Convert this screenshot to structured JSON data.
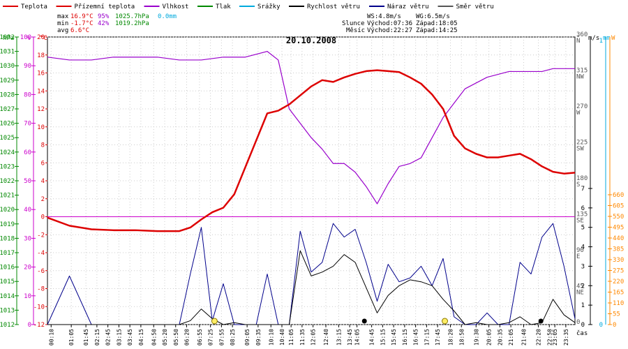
{
  "chart_data": {
    "type": "line",
    "title": "20.10.2008",
    "x_axis_label": "čas",
    "x_tick_labels": [
      "00:10",
      "01:05",
      "01:45",
      "02:15",
      "02:45",
      "03:15",
      "03:45",
      "04:15",
      "04:50",
      "05:20",
      "05:50",
      "06:20",
      "06:55",
      "07:25",
      "07:55",
      "08:25",
      "09:05",
      "09:35",
      "10:10",
      "10:40",
      "11:05",
      "11:35",
      "12:05",
      "12:40",
      "13:15",
      "13:45",
      "14:05",
      "14:45",
      "15:15",
      "15:45",
      "16:15",
      "16:45",
      "17:15",
      "17:45",
      "18:20",
      "18:50",
      "19:30",
      "20:05",
      "20:35",
      "21:05",
      "21:40",
      "22:20",
      "22:50",
      "23:05",
      "23:35"
    ],
    "legend": [
      {
        "name": "Teplota",
        "color": "#dd0000"
      },
      {
        "name": "Přízemní teplota",
        "color": "#dd0000"
      },
      {
        "name": "Vlhkost",
        "color": "#9900cc"
      },
      {
        "name": "Tlak",
        "color": "#008800"
      },
      {
        "name": "Srážky",
        "color": "#00aadd"
      },
      {
        "name": "Rychlost větru",
        "color": "#000000"
      },
      {
        "name": "Náraz větru",
        "color": "#00008b"
      },
      {
        "name": "Směr větru",
        "color": "#555555"
      }
    ],
    "stats": [
      {
        "label": "max",
        "temp": "16.9°C",
        "hum": "95%",
        "press": "1025.7hPa",
        "rain": "0.0mm"
      },
      {
        "label": "min",
        "temp": "-1.7°C",
        "hum": "42%",
        "press": "1019.2hPa",
        "rain": ""
      },
      {
        "label": "avg",
        "temp": "6.6°C",
        "hum": "",
        "press": "",
        "rain": ""
      }
    ],
    "wind_info": {
      "ws": "WS:4.8m/s",
      "wg": "WG:6.5m/s",
      "sun_label": "Slunce",
      "moon_label": "Měsíc",
      "sunrise": "Východ:07:36",
      "sunset": "Západ:18:05",
      "moonrise": "Východ:22:27",
      "moonset": "Západ:14:25"
    },
    "axes": {
      "pressure": {
        "unit": "hPa",
        "min": 1012,
        "max": 1032,
        "ticks": [
          1012,
          1013,
          1014,
          1015,
          1016,
          1017,
          1018,
          1019,
          1020,
          1021,
          1022,
          1023,
          1024,
          1025,
          1026,
          1027,
          1028,
          1029,
          1030,
          1031,
          1032
        ]
      },
      "humidity": {
        "unit": "%",
        "min": 0,
        "max": 100,
        "ticks": [
          0,
          10,
          20,
          30,
          40,
          50,
          60,
          70,
          80,
          90,
          100
        ]
      },
      "temperature": {
        "unit": "°C",
        "min": -12,
        "max": 20,
        "ticks": [
          -12,
          -10,
          -8,
          -6,
          -4,
          -2,
          0,
          2,
          4,
          6,
          8,
          10,
          12,
          14,
          16,
          18,
          20
        ]
      },
      "direction": {
        "unit": "°",
        "ticks": [
          {
            "v": 0,
            "label": "0"
          },
          {
            "v": 45,
            "label": "45",
            "dir": "NE"
          },
          {
            "v": 90,
            "label": "90",
            "dir": "E"
          },
          {
            "v": 135,
            "label": "135",
            "dir": "SE"
          },
          {
            "v": 180,
            "label": "180",
            "dir": "S"
          },
          {
            "v": 225,
            "label": "225",
            "dir": "SW"
          },
          {
            "v": 270,
            "label": "270",
            "dir": "W"
          },
          {
            "v": 315,
            "label": "315",
            "dir": "NW"
          },
          {
            "v": 360,
            "label": "360",
            "dir": "N"
          }
        ]
      },
      "wind_speed": {
        "unit": "m/s",
        "min": 0,
        "max": 7,
        "ticks": [
          0,
          1,
          2,
          3,
          4,
          5,
          6,
          7
        ]
      },
      "rain": {
        "unit": "mm",
        "min": 0,
        "max": 1,
        "ticks": [
          0,
          1
        ]
      },
      "solar": {
        "unit": "W",
        "min": 0,
        "max": 660,
        "ticks": [
          0,
          55,
          110,
          165,
          220,
          275,
          330,
          385,
          440,
          495,
          550,
          605,
          660
        ]
      }
    },
    "series": [
      {
        "name": "Teplota",
        "unit": "°C",
        "x": [
          0,
          1,
          2,
          3,
          4,
          5,
          6,
          6.5,
          7,
          7.5,
          8,
          8.5,
          9,
          9.5,
          10,
          10.5,
          11,
          11.5,
          12,
          12.5,
          13,
          13.5,
          14,
          14.5,
          15,
          15.5,
          16,
          16.5,
          17,
          17.5,
          18,
          18.5,
          19,
          19.5,
          20,
          20.5,
          21,
          21.5,
          22,
          22.5,
          23,
          23.5,
          24
        ],
        "values": [
          -0.1,
          -1.0,
          -1.4,
          -1.5,
          -1.5,
          -1.6,
          -1.6,
          -1.2,
          -0.3,
          0.5,
          1.0,
          2.5,
          5.5,
          8.5,
          11.5,
          11.8,
          12.5,
          13.5,
          14.5,
          15.2,
          15.0,
          15.5,
          15.9,
          16.2,
          16.3,
          16.2,
          16.1,
          15.5,
          14.8,
          13.6,
          12.0,
          9.0,
          7.6,
          7.0,
          6.6,
          6.6,
          6.8,
          7.0,
          6.4,
          5.6,
          5.0,
          4.8,
          4.9
        ]
      },
      {
        "name": "Vlhkost",
        "unit": "%",
        "x": [
          0,
          1,
          2,
          3,
          4,
          5,
          6,
          7,
          8,
          9,
          10,
          10.5,
          11,
          11.5,
          12,
          12.5,
          13,
          13.5,
          14,
          14.5,
          15,
          15.5,
          16,
          16.5,
          17,
          17.5,
          18,
          18.5,
          19,
          19.5,
          20,
          20.5,
          21,
          21.5,
          22,
          22.5,
          23,
          23.5,
          24
        ],
        "values": [
          93,
          92,
          92,
          93,
          93,
          93,
          92,
          92,
          93,
          93,
          95,
          92,
          75,
          70,
          65,
          61,
          56,
          56,
          53,
          48,
          42,
          49,
          55,
          56,
          58,
          65,
          72,
          77,
          82,
          84,
          86,
          87,
          88,
          88,
          88,
          88,
          89,
          89,
          89
        ]
      },
      {
        "name": "Rychlost větru",
        "unit": "m/s",
        "x": [
          0,
          3,
          6,
          6.5,
          7,
          7.5,
          8,
          8.5,
          9,
          10,
          10.5,
          11,
          11.5,
          12,
          12.5,
          13,
          13.5,
          14,
          14.5,
          15,
          15.5,
          16,
          16.5,
          17,
          17.5,
          18,
          18.5,
          19,
          19.5,
          20,
          20.5,
          21,
          21.5,
          22,
          22.5,
          23,
          23.5,
          24
        ],
        "values": [
          0,
          0,
          0,
          0.2,
          0.8,
          0.3,
          0,
          0.1,
          0,
          0,
          0,
          0,
          3.8,
          2.5,
          2.7,
          3.0,
          3.6,
          3.2,
          1.9,
          0.6,
          1.5,
          2.0,
          2.3,
          2.2,
          2.0,
          1.3,
          0.7,
          0,
          0.1,
          0,
          0,
          0.1,
          0.4,
          0,
          0.1,
          1.3,
          0.5,
          0.1
        ]
      },
      {
        "name": "Náraz větru",
        "unit": "m/s",
        "x": [
          0,
          1,
          2,
          3,
          4,
          5,
          6,
          6.5,
          7,
          7.5,
          8,
          8.5,
          9,
          9.5,
          10,
          10.5,
          11,
          11.5,
          12,
          12.5,
          13,
          13.5,
          14,
          14.5,
          15,
          15.5,
          16,
          16.5,
          17,
          17.5,
          18,
          18.5,
          19,
          19.5,
          20,
          20.5,
          21,
          21.5,
          22,
          22.5,
          23,
          23.5,
          24
        ],
        "values": [
          0,
          2.5,
          0,
          0,
          0,
          0,
          0,
          2.6,
          5.0,
          0.2,
          2.1,
          0,
          0,
          0,
          2.6,
          0,
          0,
          4.8,
          2.7,
          3.2,
          5.2,
          4.5,
          4.9,
          3.2,
          1.2,
          3.1,
          2.2,
          2.4,
          3.0,
          2.0,
          3.4,
          0.4,
          0,
          0,
          0.6,
          0,
          0,
          3.2,
          2.6,
          4.5,
          5.2,
          3.0,
          0.3
        ]
      }
    ]
  }
}
